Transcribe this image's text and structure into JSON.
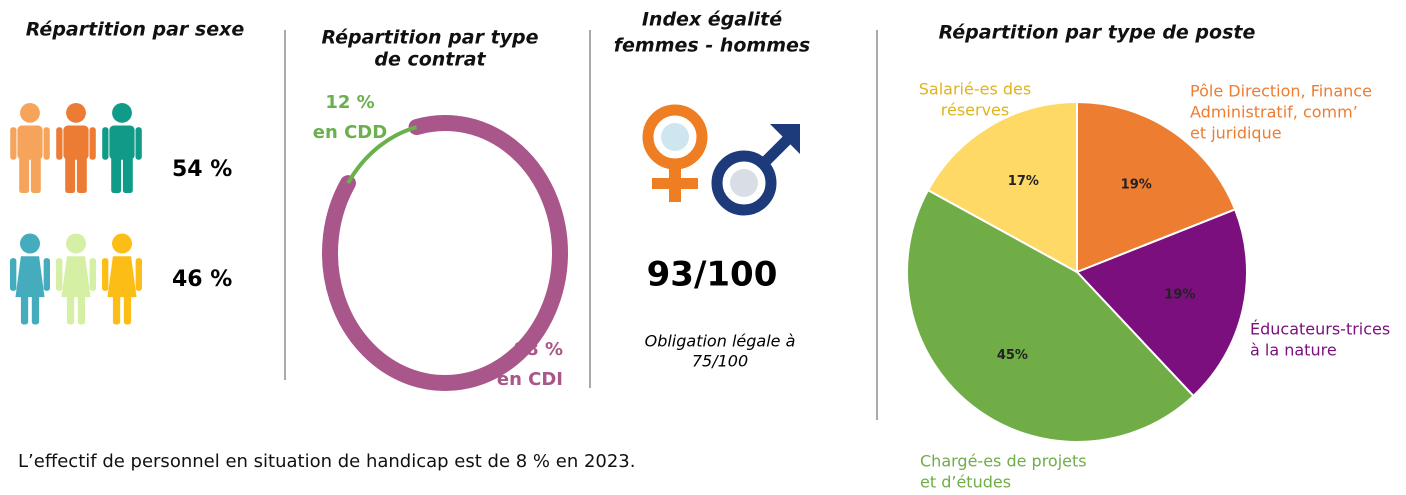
{
  "sexe": {
    "title": "Répartition par  sexe",
    "men": "54 %",
    "women": "46 %"
  },
  "index": {
    "title_lines": [
      "Index égalité",
      "femmes - hommes"
    ],
    "score": "93/100",
    "note_lines": [
      "Obligation légale à",
      "75/100"
    ]
  },
  "chart_data": [
    {
      "type": "donut",
      "title_lines": [
        "Répartition par type",
        "de contrat"
      ],
      "categories": [
        "en CDD",
        "en CDI"
      ],
      "values": [
        12,
        88
      ],
      "value_labels": [
        "12 %",
        "88 %"
      ],
      "colors": [
        "#6ab04c",
        "#a9568a"
      ]
    },
    {
      "type": "pie",
      "title": "Répartition par type de poste",
      "categories": [
        [
          "Pôle Direction, Finance",
          "Administratif, comm’",
          "et juridique"
        ],
        [
          "Éducateurs-trices",
          "à la nature"
        ],
        [
          "Chargé-es de projets",
          "et d’études"
        ],
        [
          "Salarié-es des",
          "réserves"
        ]
      ],
      "values": [
        19,
        19,
        45,
        17
      ],
      "value_labels": [
        "19%",
        "19%",
        "45%",
        "17%"
      ],
      "colors": [
        "#ed7d31",
        "#7b0f7e",
        "#70ad47",
        "#ffd966"
      ]
    }
  ],
  "footer": "L’effectif de personnel en situation de handicap est de 8 % en 2023."
}
